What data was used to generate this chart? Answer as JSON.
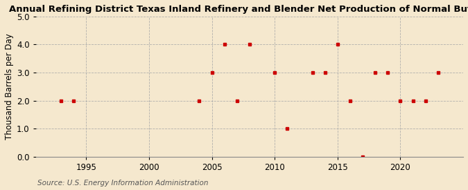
{
  "title": "Annual Refining District Texas Inland Refinery and Blender Net Production of Normal Butane",
  "ylabel": "Thousand Barrels per Day",
  "source": "Source: U.S. Energy Information Administration",
  "background_color": "#f5e8ce",
  "years": [
    1993,
    1994,
    2004,
    2005,
    2006,
    2007,
    2008,
    2010,
    2011,
    2013,
    2014,
    2015,
    2016,
    2017,
    2018,
    2019,
    2020,
    2021,
    2022,
    2023
  ],
  "values": [
    2.0,
    2.0,
    2.0,
    3.0,
    4.0,
    2.0,
    4.0,
    3.0,
    1.0,
    3.0,
    3.0,
    4.0,
    2.0,
    0.0,
    3.0,
    3.0,
    2.0,
    2.0,
    2.0,
    3.0
  ],
  "marker_color": "#cc0000",
  "grid_color": "#aaaaaa",
  "xlim": [
    1991,
    2025
  ],
  "ylim": [
    0.0,
    5.0
  ],
  "yticks": [
    0.0,
    1.0,
    2.0,
    3.0,
    4.0,
    5.0
  ],
  "xticks": [
    1995,
    2000,
    2005,
    2010,
    2015,
    2020
  ],
  "title_fontsize": 9.5,
  "axis_fontsize": 8.5,
  "source_fontsize": 7.5
}
